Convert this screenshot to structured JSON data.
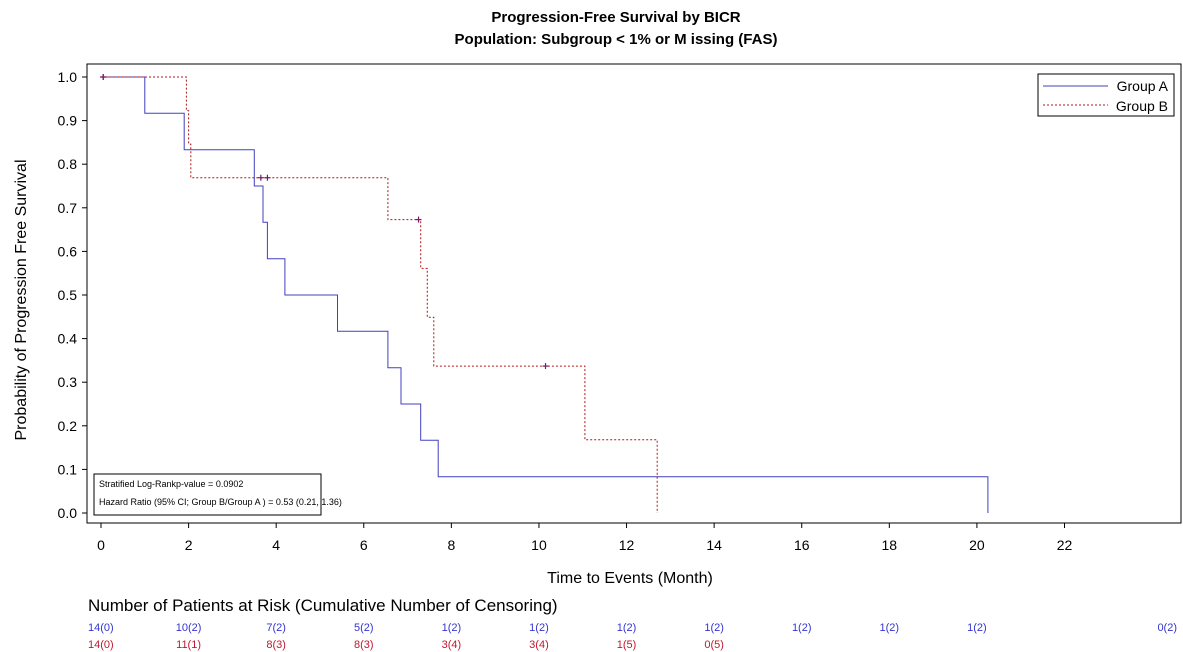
{
  "chart_data": {
    "type": "line",
    "subtype": "kaplan-meier step",
    "title": "Progression-Free Survival by BICR",
    "subtitle": "Population: Subgroup < 1% or M issing (FAS)",
    "xlabel": "Time to Events (Month)",
    "ylabel": "Probability of Progression Free Survival",
    "xlim": [
      0,
      22
    ],
    "ylim": [
      0,
      1
    ],
    "xticks": [
      "0",
      "2",
      "4",
      "6",
      "8",
      "10",
      "12",
      "14",
      "16",
      "18",
      "20",
      "22"
    ],
    "yticks": [
      "0.0",
      "0.1",
      "0.2",
      "0.3",
      "0.4",
      "0.5",
      "0.6",
      "0.7",
      "0.8",
      "0.9",
      "1.0"
    ],
    "grid": false,
    "legend_position": "top-right",
    "series": [
      {
        "name": "Group A",
        "color": "#4040c0",
        "line_style": "solid",
        "points": [
          [
            0,
            1.0
          ],
          [
            1.0,
            1.0
          ],
          [
            1.0,
            0.917
          ],
          [
            1.9,
            0.917
          ],
          [
            1.9,
            0.833
          ],
          [
            3.5,
            0.833
          ],
          [
            3.5,
            0.75
          ],
          [
            3.7,
            0.75
          ],
          [
            3.7,
            0.667
          ],
          [
            3.8,
            0.667
          ],
          [
            3.8,
            0.583
          ],
          [
            4.2,
            0.583
          ],
          [
            4.2,
            0.5
          ],
          [
            5.4,
            0.5
          ],
          [
            5.4,
            0.417
          ],
          [
            6.55,
            0.417
          ],
          [
            6.55,
            0.333
          ],
          [
            6.85,
            0.333
          ],
          [
            6.85,
            0.25
          ],
          [
            7.3,
            0.25
          ],
          [
            7.3,
            0.167
          ],
          [
            7.7,
            0.167
          ],
          [
            7.7,
            0.083
          ],
          [
            20.25,
            0.083
          ],
          [
            20.25,
            0.0
          ]
        ],
        "censored": [
          [
            0.05,
            1.0
          ]
        ]
      },
      {
        "name": "Group B",
        "color": "#b01818",
        "line_style": "dotted",
        "points": [
          [
            0,
            1.0
          ],
          [
            1.95,
            1.0
          ],
          [
            1.95,
            0.923
          ],
          [
            2.0,
            0.923
          ],
          [
            2.0,
            0.846
          ],
          [
            2.05,
            0.846
          ],
          [
            2.05,
            0.769
          ],
          [
            6.55,
            0.769
          ],
          [
            6.55,
            0.673
          ],
          [
            7.3,
            0.673
          ],
          [
            7.3,
            0.561
          ],
          [
            7.45,
            0.561
          ],
          [
            7.45,
            0.449
          ],
          [
            7.6,
            0.449
          ],
          [
            7.6,
            0.337
          ],
          [
            11.05,
            0.337
          ],
          [
            11.05,
            0.168
          ],
          [
            12.7,
            0.168
          ],
          [
            12.7,
            0.0
          ]
        ],
        "censored": [
          [
            0.05,
            1.0
          ],
          [
            3.65,
            0.769
          ],
          [
            3.8,
            0.769
          ],
          [
            7.25,
            0.673
          ],
          [
            10.15,
            0.337
          ]
        ]
      }
    ]
  },
  "stats_box": {
    "line1": "Stratified Log-Rankp-value = 0.0902",
    "line2": "Hazard Ratio (95% CI; Group B/Group A ) = 0.53 (0.21, 1.36)"
  },
  "risk_table": {
    "title": "Number of Patients at Risk (Cumulative Number of Censoring)",
    "rows": [
      {
        "group": "Group A",
        "color": "#3535d0",
        "values": [
          "14(0)",
          "10(2)",
          "7(2)",
          "5(2)",
          "1(2)",
          "1(2)",
          "1(2)",
          "1(2)",
          "1(2)",
          "1(2)",
          "1(2)",
          "0(2)"
        ]
      },
      {
        "group": "Group B",
        "color": "#c01830",
        "values": [
          "14(0)",
          "11(1)",
          "8(3)",
          "8(3)",
          "3(4)",
          "3(4)",
          "1(5)",
          "0(5)"
        ]
      }
    ]
  }
}
